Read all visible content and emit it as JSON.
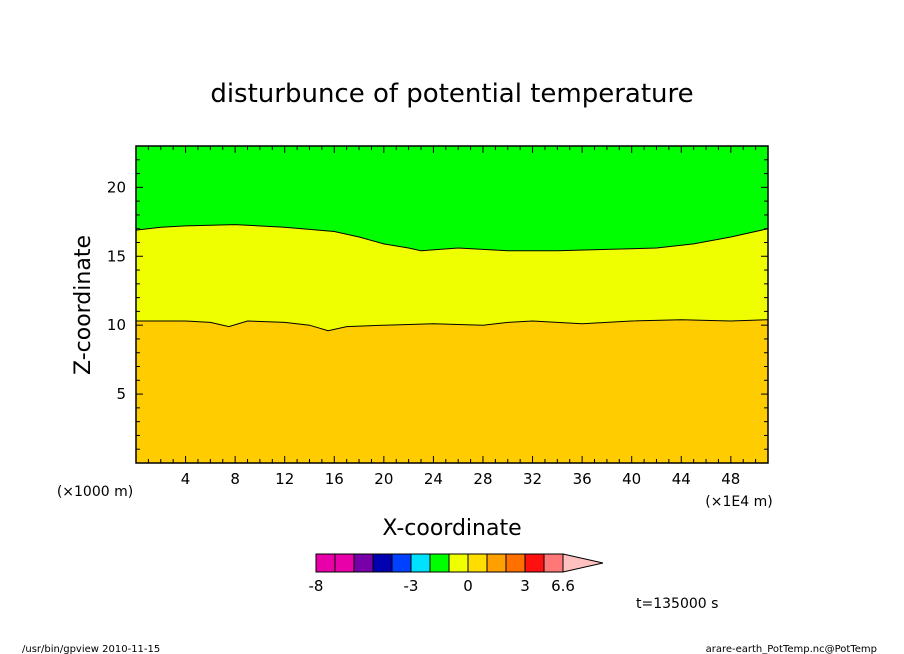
{
  "chart_data": {
    "type": "heatmap",
    "subtype": "filled-contour",
    "title": "disturbunce of potential temperature",
    "xlabel": "X-coordinate",
    "ylabel": "Z-coordinate",
    "x_unit": "(×1E4 m)",
    "z_unit": "(×1000 m)",
    "xlim": [
      0,
      51
    ],
    "ylim": [
      0,
      23
    ],
    "x_ticks": [
      4,
      8,
      12,
      16,
      20,
      24,
      28,
      32,
      36,
      40,
      44,
      48
    ],
    "y_ticks": [
      5,
      10,
      15,
      20
    ],
    "x_tick_labels": [
      "4",
      "8",
      "12",
      "16",
      "20",
      "24",
      "28",
      "32",
      "36",
      "40",
      "44",
      "48"
    ],
    "y_tick_labels": [
      "5",
      "10",
      "15",
      "20"
    ],
    "regions": [
      {
        "name": "orange",
        "color": "#ffcc00"
      },
      {
        "name": "yellow",
        "color": "#f0ff00"
      },
      {
        "name": "green",
        "color": "#00ff00"
      }
    ],
    "contours": [
      {
        "name": "lower",
        "points": [
          [
            0,
            10.3
          ],
          [
            4,
            10.3
          ],
          [
            6,
            10.2
          ],
          [
            7.5,
            9.9
          ],
          [
            9,
            10.3
          ],
          [
            12,
            10.2
          ],
          [
            14,
            10.0
          ],
          [
            15.5,
            9.6
          ],
          [
            17,
            9.9
          ],
          [
            20,
            10.0
          ],
          [
            24,
            10.1
          ],
          [
            28,
            10.0
          ],
          [
            30,
            10.2
          ],
          [
            32,
            10.3
          ],
          [
            36,
            10.1
          ],
          [
            40,
            10.3
          ],
          [
            44,
            10.4
          ],
          [
            48,
            10.3
          ],
          [
            51,
            10.4
          ]
        ]
      },
      {
        "name": "upper",
        "points": [
          [
            0,
            16.9
          ],
          [
            2,
            17.1
          ],
          [
            4,
            17.2
          ],
          [
            8,
            17.3
          ],
          [
            12,
            17.1
          ],
          [
            16,
            16.8
          ],
          [
            18,
            16.4
          ],
          [
            20,
            15.9
          ],
          [
            22,
            15.6
          ],
          [
            23,
            15.4
          ],
          [
            26,
            15.6
          ],
          [
            30,
            15.4
          ],
          [
            34,
            15.4
          ],
          [
            38,
            15.5
          ],
          [
            42,
            15.6
          ],
          [
            45,
            15.9
          ],
          [
            48,
            16.4
          ],
          [
            51,
            17.0
          ]
        ]
      }
    ],
    "colorbar": {
      "colors": [
        "#e800a8",
        "#e800a8",
        "#7800a8",
        "#0000b0",
        "#0040ff",
        "#00e0ff",
        "#00ff00",
        "#f0ff00",
        "#ffdd00",
        "#ffa000",
        "#ff7000",
        "#ff1010",
        "#ff7878"
      ],
      "extend_color": "#ffc0c0",
      "labels": [
        "-8",
        "-3",
        "0",
        "3",
        "6.6"
      ]
    },
    "time_label": "t=135000 s"
  },
  "footer": {
    "left": "/usr/bin/gpview  2010-11-15",
    "right": "arare-earth_PotTemp.nc@PotTemp"
  }
}
